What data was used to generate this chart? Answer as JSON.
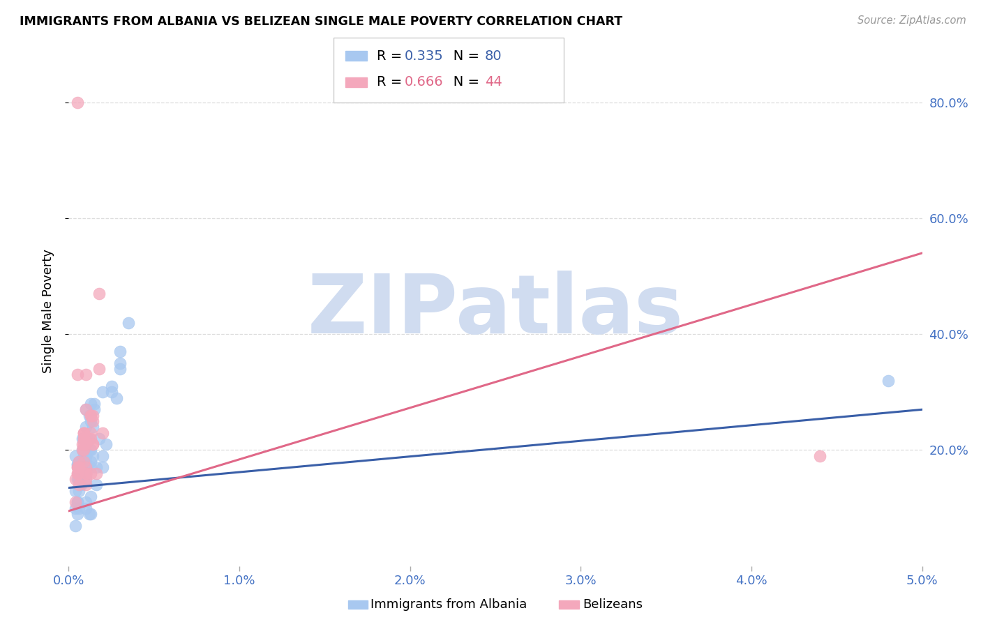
{
  "title": "IMMIGRANTS FROM ALBANIA VS BELIZEAN SINGLE MALE POVERTY CORRELATION CHART",
  "source": "Source: ZipAtlas.com",
  "ylabel_label": "Single Male Poverty",
  "legend_label1": "Immigrants from Albania",
  "legend_label2": "Belizeans",
  "R1": "0.335",
  "N1": "80",
  "R2": "0.666",
  "N2": "44",
  "color1": "#A8C8F0",
  "color2": "#F4A8BC",
  "line_color1": "#3A5FA8",
  "line_color2": "#E06888",
  "watermark": "ZIPatlas",
  "watermark_color": "#D0DCF0",
  "xlim": [
    0.0,
    0.05
  ],
  "ylim": [
    0.0,
    0.88
  ],
  "x_ticks": [
    0.0,
    0.01,
    0.02,
    0.03,
    0.04,
    0.05
  ],
  "x_tick_labels": [
    "0.0%",
    "1.0%",
    "2.0%",
    "3.0%",
    "4.0%",
    "5.0%"
  ],
  "y_ticks": [
    0.2,
    0.4,
    0.6,
    0.8
  ],
  "y_tick_labels": [
    "20.0%",
    "40.0%",
    "60.0%",
    "80.0%"
  ],
  "background": "#FFFFFF",
  "grid_color": "#DDDDDD",
  "scatter1_x": [
    0.0005,
    0.0008,
    0.0006,
    0.001,
    0.0007,
    0.0004,
    0.0009,
    0.0006,
    0.0008,
    0.0005,
    0.001,
    0.0007,
    0.0009,
    0.0006,
    0.0008,
    0.0005,
    0.0007,
    0.001,
    0.0008,
    0.0004,
    0.0009,
    0.0012,
    0.001,
    0.0015,
    0.0013,
    0.0011,
    0.0004,
    0.0012,
    0.001,
    0.0009,
    0.0014,
    0.001,
    0.0007,
    0.0009,
    0.0013,
    0.0012,
    0.001,
    0.0011,
    0.0008,
    0.0006,
    0.0009,
    0.001,
    0.0016,
    0.0013,
    0.0011,
    0.0014,
    0.001,
    0.0013,
    0.001,
    0.0013,
    0.0012,
    0.001,
    0.0006,
    0.0005,
    0.0004,
    0.001,
    0.0013,
    0.0016,
    0.0013,
    0.0005,
    0.002,
    0.0025,
    0.0022,
    0.0018,
    0.0015,
    0.002,
    0.003,
    0.002,
    0.0025,
    0.0028,
    0.0008,
    0.0007,
    0.0035,
    0.003,
    0.0005,
    0.003,
    0.048,
    0.001,
    0.0006,
    0.001
  ],
  "scatter1_y": [
    0.175,
    0.22,
    0.15,
    0.27,
    0.17,
    0.19,
    0.2,
    0.165,
    0.18,
    0.175,
    0.22,
    0.14,
    0.16,
    0.18,
    0.165,
    0.15,
    0.17,
    0.24,
    0.2,
    0.13,
    0.19,
    0.26,
    0.18,
    0.27,
    0.28,
    0.22,
    0.1,
    0.2,
    0.21,
    0.19,
    0.24,
    0.19,
    0.16,
    0.17,
    0.25,
    0.22,
    0.19,
    0.22,
    0.17,
    0.16,
    0.17,
    0.16,
    0.17,
    0.2,
    0.22,
    0.19,
    0.16,
    0.18,
    0.2,
    0.17,
    0.09,
    0.11,
    0.1,
    0.11,
    0.07,
    0.15,
    0.12,
    0.14,
    0.09,
    0.09,
    0.3,
    0.31,
    0.21,
    0.22,
    0.28,
    0.19,
    0.35,
    0.17,
    0.3,
    0.29,
    0.175,
    0.18,
    0.42,
    0.37,
    0.11,
    0.34,
    0.32,
    0.1,
    0.13,
    0.22
  ],
  "scatter2_x": [
    0.0005,
    0.0008,
    0.0006,
    0.0009,
    0.0005,
    0.0006,
    0.0009,
    0.0005,
    0.0008,
    0.0004,
    0.0004,
    0.0009,
    0.0005,
    0.0009,
    0.0009,
    0.0006,
    0.0009,
    0.0009,
    0.0006,
    0.0009,
    0.0013,
    0.001,
    0.0005,
    0.0013,
    0.001,
    0.0014,
    0.0013,
    0.0013,
    0.001,
    0.0014,
    0.001,
    0.001,
    0.0013,
    0.001,
    0.0014,
    0.0018,
    0.0014,
    0.0018,
    0.001,
    0.001,
    0.002,
    0.0016,
    0.0005,
    0.044
  ],
  "scatter2_y": [
    0.17,
    0.2,
    0.14,
    0.18,
    0.16,
    0.17,
    0.22,
    0.16,
    0.21,
    0.15,
    0.11,
    0.2,
    0.17,
    0.23,
    0.23,
    0.17,
    0.21,
    0.23,
    0.18,
    0.22,
    0.26,
    0.27,
    0.33,
    0.26,
    0.21,
    0.25,
    0.23,
    0.22,
    0.33,
    0.21,
    0.17,
    0.16,
    0.16,
    0.15,
    0.26,
    0.34,
    0.21,
    0.47,
    0.14,
    0.16,
    0.23,
    0.16,
    0.8,
    0.19
  ],
  "line1_x0": 0.0,
  "line1_x1": 0.05,
  "line1_y0": 0.135,
  "line1_y1": 0.27,
  "line2_x0": 0.0,
  "line2_x1": 0.05,
  "line2_y0": 0.095,
  "line2_y1": 0.54
}
